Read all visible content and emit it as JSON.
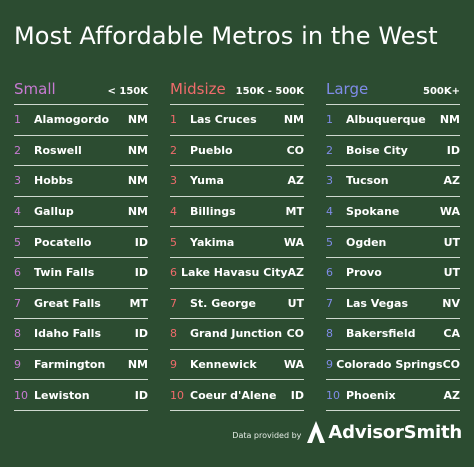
{
  "title": "Most Affordable Metros in the West",
  "columns": [
    {
      "name": "Small",
      "range": "< 150K",
      "rows": [
        {
          "rank": "1",
          "city": "Alamogordo",
          "state": "NM"
        },
        {
          "rank": "2",
          "city": "Roswell",
          "state": "NM"
        },
        {
          "rank": "3",
          "city": "Hobbs",
          "state": "NM"
        },
        {
          "rank": "4",
          "city": "Gallup",
          "state": "NM"
        },
        {
          "rank": "5",
          "city": "Pocatello",
          "state": "ID"
        },
        {
          "rank": "6",
          "city": "Twin Falls",
          "state": "ID"
        },
        {
          "rank": "7",
          "city": "Great Falls",
          "state": "MT"
        },
        {
          "rank": "8",
          "city": "Idaho Falls",
          "state": "ID"
        },
        {
          "rank": "9",
          "city": "Farmington",
          "state": "NM"
        },
        {
          "rank": "10",
          "city": "Lewiston",
          "state": "ID"
        }
      ]
    },
    {
      "name": "Midsize",
      "range": "150K - 500K",
      "rows": [
        {
          "rank": "1",
          "city": "Las Cruces",
          "state": "NM"
        },
        {
          "rank": "2",
          "city": "Pueblo",
          "state": "CO"
        },
        {
          "rank": "3",
          "city": "Yuma",
          "state": "AZ"
        },
        {
          "rank": "4",
          "city": "Billings",
          "state": "MT"
        },
        {
          "rank": "5",
          "city": "Yakima",
          "state": "WA"
        },
        {
          "rank": "6",
          "city": "Lake Havasu City",
          "state": "AZ"
        },
        {
          "rank": "7",
          "city": "St. George",
          "state": "UT"
        },
        {
          "rank": "8",
          "city": "Grand Junction",
          "state": "CO"
        },
        {
          "rank": "9",
          "city": "Kennewick",
          "state": "WA"
        },
        {
          "rank": "10",
          "city": "Coeur d'Alene",
          "state": "ID"
        }
      ]
    },
    {
      "name": "Large",
      "range": "500K+",
      "rows": [
        {
          "rank": "1",
          "city": "Albuquerque",
          "state": "NM"
        },
        {
          "rank": "2",
          "city": "Boise City",
          "state": "ID"
        },
        {
          "rank": "3",
          "city": "Tucson",
          "state": "AZ"
        },
        {
          "rank": "4",
          "city": "Spokane",
          "state": "WA"
        },
        {
          "rank": "5",
          "city": "Ogden",
          "state": "UT"
        },
        {
          "rank": "6",
          "city": "Provo",
          "state": "UT"
        },
        {
          "rank": "7",
          "city": "Las Vegas",
          "state": "NV"
        },
        {
          "rank": "8",
          "city": "Bakersfield",
          "state": "CA"
        },
        {
          "rank": "9",
          "city": "Colorado Springs",
          "state": "CO"
        },
        {
          "rank": "10",
          "city": "Phoenix",
          "state": "AZ"
        }
      ]
    }
  ],
  "footer": {
    "provided_by": "Data provided by",
    "brand": "AdvisorSmith",
    "logo_icon": "advisorsmith-logo-icon"
  },
  "colors": {
    "background": "#2c4c31",
    "small": "#c77ad2",
    "midsize": "#ef6b6b",
    "large": "#7f8ce8"
  }
}
